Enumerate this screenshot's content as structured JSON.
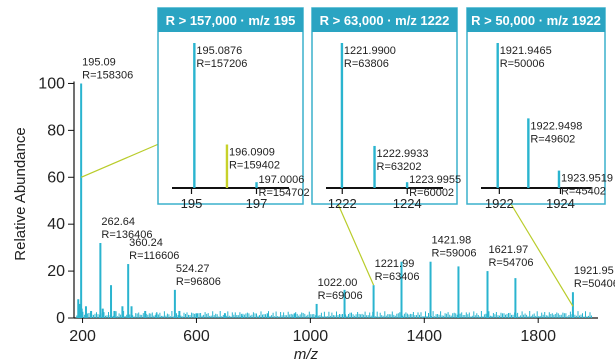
{
  "chart_data": {
    "type": "line",
    "title": "",
    "xlabel": "m/z",
    "ylabel": "Relative Abundance",
    "xlim": [
      170,
      2010
    ],
    "ylim": [
      0,
      110
    ],
    "xticks": [
      "200",
      "600",
      "1000",
      "1400",
      "1800"
    ],
    "yticks": [
      "0",
      "20",
      "40",
      "60",
      "80",
      "100"
    ],
    "colors": {
      "peak": "#2ab4cf",
      "inset_border": "#3ab0cc",
      "inset_header": "#2aa4c2",
      "connector": "#b9cc2a",
      "highlight_peak": "#c7d12a"
    },
    "peaks": [
      {
        "x": 185,
        "y": 8
      },
      {
        "x": 190,
        "y": 6
      },
      {
        "x": 195.09,
        "y": 100
      },
      {
        "x": 197.0,
        "y": 4
      },
      {
        "x": 212,
        "y": 5
      },
      {
        "x": 230,
        "y": 3
      },
      {
        "x": 262.64,
        "y": 32
      },
      {
        "x": 271,
        "y": 4
      },
      {
        "x": 300,
        "y": 14
      },
      {
        "x": 312,
        "y": 3
      },
      {
        "x": 340,
        "y": 5
      },
      {
        "x": 360.24,
        "y": 23
      },
      {
        "x": 372,
        "y": 5
      },
      {
        "x": 420,
        "y": 3
      },
      {
        "x": 460,
        "y": 2
      },
      {
        "x": 524.27,
        "y": 12
      },
      {
        "x": 540,
        "y": 3
      },
      {
        "x": 600,
        "y": 2
      },
      {
        "x": 700,
        "y": 2
      },
      {
        "x": 760,
        "y": 1
      },
      {
        "x": 850,
        "y": 2
      },
      {
        "x": 945,
        "y": 2
      },
      {
        "x": 1022.0,
        "y": 6
      },
      {
        "x": 1120,
        "y": 12
      },
      {
        "x": 1221.99,
        "y": 14
      },
      {
        "x": 1320,
        "y": 24
      },
      {
        "x": 1421.98,
        "y": 24
      },
      {
        "x": 1520,
        "y": 22
      },
      {
        "x": 1621.97,
        "y": 20
      },
      {
        "x": 1720,
        "y": 17
      },
      {
        "x": 1921.95,
        "y": 11
      }
    ],
    "annotations": [
      {
        "x": 195.09,
        "mz": "195.09",
        "res": "R=158306"
      },
      {
        "x": 262.64,
        "mz": "262.64",
        "res": "R=136406"
      },
      {
        "x": 360.24,
        "mz": "360.24",
        "res": "R=116606"
      },
      {
        "x": 524.27,
        "mz": "524.27",
        "res": "R=96806"
      },
      {
        "x": 1022.0,
        "mz": "1022.00",
        "res": "R=69006"
      },
      {
        "x": 1221.99,
        "mz": "1221.99",
        "res": "R=63406"
      },
      {
        "x": 1421.98,
        "mz": "1421.98",
        "res": "R=59006"
      },
      {
        "x": 1621.97,
        "mz": "1621.97",
        "res": "R=54706"
      },
      {
        "x": 1921.95,
        "mz": "1921.95",
        "res": "R=50406"
      }
    ],
    "insets": [
      {
        "title": "R > 157,000 · m/z 195",
        "xlim": [
          194.4,
          198.0
        ],
        "xticks": [
          "195",
          "197"
        ],
        "peaks": [
          {
            "x": 195.0876,
            "y": 100,
            "mz": "195.0876",
            "res": "R=157206"
          },
          {
            "x": 196.0909,
            "y": 30,
            "mz": "196.0909",
            "res": "R=159402"
          },
          {
            "x": 197.0006,
            "y": 4,
            "mz": "197.0006",
            "res": "R=154702"
          }
        ]
      },
      {
        "title": "R > 63,000 · m/z 1222",
        "xlim": [
          1221.5,
          1225.1
        ],
        "xticks": [
          "1222",
          "1224"
        ],
        "peaks": [
          {
            "x": 1221.99,
            "y": 100,
            "mz": "1221.9900",
            "res": "R=63806"
          },
          {
            "x": 1222.9933,
            "y": 29,
            "mz": "1222.9933",
            "res": "R=63202"
          },
          {
            "x": 1223.9955,
            "y": 4,
            "mz": "1223.9955",
            "res": "R=60002"
          }
        ]
      },
      {
        "title": "R > 50,000 · m/z 1922",
        "xlim": [
          1921.4,
          1925.0
        ],
        "xticks": [
          "1922",
          "1924"
        ],
        "peaks": [
          {
            "x": 1921.9465,
            "y": 100,
            "mz": "1921.9465",
            "res": "R=50006"
          },
          {
            "x": 1922.9498,
            "y": 48,
            "mz": "1922.9498",
            "res": "R=49602"
          },
          {
            "x": 1923.9519,
            "y": 12,
            "mz": "1923.9519",
            "res": "R=45402"
          }
        ]
      }
    ]
  }
}
